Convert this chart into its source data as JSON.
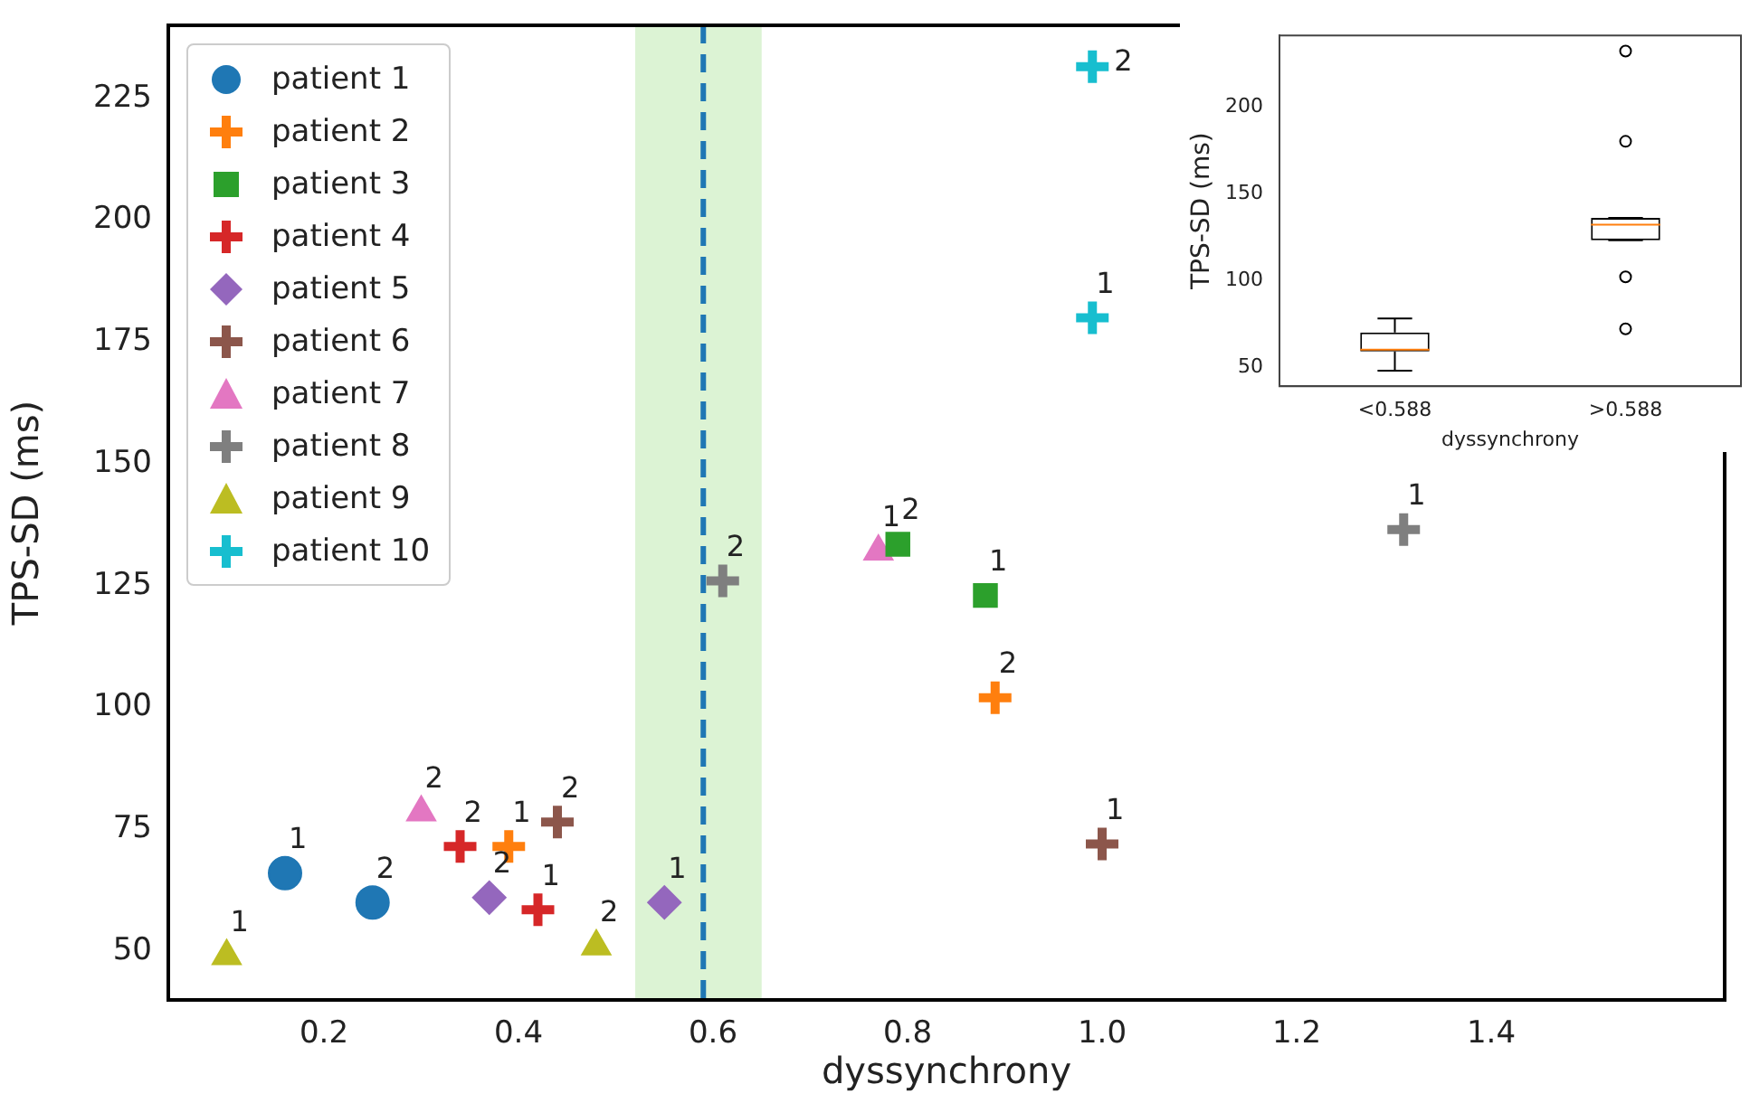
{
  "chart_data": [
    {
      "type": "scatter",
      "xlabel": "dyssynchrony",
      "ylabel": "TPS-SD (ms)",
      "xlim": [
        0.04,
        1.64
      ],
      "xticks": [
        0.2,
        0.4,
        0.6,
        0.8,
        {
          "value": 1.0,
          "label": "1.0"
        },
        1.2,
        1.4
      ],
      "ylim": [
        40,
        240
      ],
      "yticks": [
        50,
        75,
        100,
        125,
        150,
        175,
        200,
        225
      ],
      "grid": false,
      "legend": "top left",
      "series": [
        {
          "name": "patient 1",
          "color": "#1f77b4",
          "marker": "circle",
          "x": [
            0.16,
            0.25
          ],
          "values": [
            66,
            60
          ]
        },
        {
          "name": "patient 2",
          "color": "#ff7f0e",
          "marker": "cross",
          "x": [
            0.39,
            0.89
          ],
          "values": [
            71.5,
            102
          ]
        },
        {
          "name": "patient 3",
          "color": "#2ca02c",
          "marker": "square",
          "x": [
            0.88,
            0.79
          ],
          "values": [
            123,
            133.5
          ]
        },
        {
          "name": "patient 4",
          "color": "#d62728",
          "marker": "cross",
          "x": [
            0.42,
            0.34
          ],
          "values": [
            58.5,
            71.5
          ]
        },
        {
          "name": "patient 5",
          "color": "#9467bd",
          "marker": "diamond",
          "x": [
            0.55,
            0.37
          ],
          "values": [
            60,
            61
          ]
        },
        {
          "name": "patient 6",
          "color": "#8c564b",
          "marker": "cross",
          "x": [
            1.0,
            0.44
          ],
          "values": [
            72,
            76.5
          ]
        },
        {
          "name": "patient 7",
          "color": "#e377c2",
          "marker": "triangle",
          "x": [
            0.77,
            0.3
          ],
          "values": [
            132,
            78.5
          ]
        },
        {
          "name": "patient 8",
          "color": "#7f7f7f",
          "marker": "cross",
          "x": [
            1.31,
            0.61
          ],
          "values": [
            136.5,
            126
          ]
        },
        {
          "name": "patient 9",
          "color": "#bcbd22",
          "marker": "triangle",
          "x": [
            0.1,
            0.48
          ],
          "values": [
            49,
            51
          ]
        },
        {
          "name": "patient 10",
          "color": "#17becf",
          "marker": "cross",
          "x": [
            0.99,
            0.99
          ],
          "values": [
            180,
            231.5
          ]
        }
      ],
      "ref_lines": [
        {
          "axis": "x",
          "value": 0.59,
          "color": "#1f77b4",
          "line_style": "dashed"
        }
      ],
      "bands": [
        {
          "axis": "x",
          "from": 0.52,
          "to": 0.65,
          "color": "#dcf3d4"
        }
      ],
      "annotations": [
        {
          "text": "1",
          "x": 0.16,
          "y": 66
        },
        {
          "text": "2",
          "x": 0.25,
          "y": 60
        },
        {
          "text": "1",
          "x": 0.39,
          "y": 71.5
        },
        {
          "text": "2",
          "x": 0.89,
          "y": 102
        },
        {
          "text": "1",
          "x": 0.88,
          "y": 123
        },
        {
          "text": "2",
          "x": 0.79,
          "y": 133.5
        },
        {
          "text": "1",
          "x": 0.42,
          "y": 58.5
        },
        {
          "text": "2",
          "x": 0.34,
          "y": 71.5
        },
        {
          "text": "1",
          "x": 0.55,
          "y": 60
        },
        {
          "text": "2",
          "x": 0.37,
          "y": 61
        },
        {
          "text": "1",
          "x": 1.0,
          "y": 72
        },
        {
          "text": "2",
          "x": 0.44,
          "y": 76.5
        },
        {
          "text": "1",
          "x": 0.77,
          "y": 132
        },
        {
          "text": "2",
          "x": 0.3,
          "y": 78.5
        },
        {
          "text": "1",
          "x": 1.31,
          "y": 136.5
        },
        {
          "text": "2",
          "x": 0.61,
          "y": 126
        },
        {
          "text": "1",
          "x": 0.1,
          "y": 49
        },
        {
          "text": "2",
          "x": 0.48,
          "y": 51
        },
        {
          "text": "1",
          "x": 0.99,
          "y": 180
        },
        {
          "text": "2",
          "x": 0.99,
          "y": 231.5
        }
      ]
    },
    {
      "type": "box",
      "xlabel": "dyssynchrony",
      "ylabel": "TPS-SD (ms)",
      "categories": [
        "<0.588",
        ">0.588"
      ],
      "ylim": [
        39,
        241
      ],
      "yticks": [
        50,
        100,
        150,
        200
      ],
      "grid": false,
      "boxes": [
        {
          "low": 48,
          "q1": 59,
          "median": 60,
          "q3": 70,
          "high": 78
        },
        {
          "low": 123,
          "q1": 123,
          "median": 132,
          "q3": 136,
          "high": 136,
          "outliers": [
            232,
            180,
            102,
            72
          ]
        }
      ]
    }
  ]
}
